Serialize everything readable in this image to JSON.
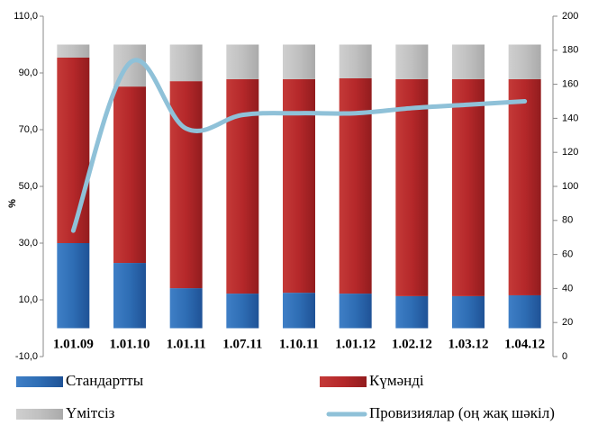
{
  "chart_data": {
    "type": "bar",
    "stacked": true,
    "y_label": "%",
    "categories": [
      "1.01.09",
      "1.01.10",
      "1.01.11",
      "1.07.11",
      "1.10.11",
      "1.01.12",
      "1.02.12",
      "1.03.12",
      "1.04.12"
    ],
    "series": [
      {
        "name": "Стандартты",
        "color": "#2e6db4",
        "values": [
          30,
          23,
          14.1,
          12.2,
          12.5,
          12.2,
          11.3,
          11.3,
          11.6
        ]
      },
      {
        "name": "Күмәнді",
        "color": "#b5282a",
        "values": [
          65.4,
          62.2,
          73,
          75.6,
          75.3,
          75.9,
          76.5,
          76.5,
          76.2
        ]
      },
      {
        "name": "Үмітсіз",
        "color": "#c0c0c0",
        "values": [
          4.6,
          14.8,
          12.9,
          12.2,
          12.2,
          11.9,
          12.2,
          12.2,
          12.2
        ]
      },
      {
        "name": "Провизиялар (оң жақ шәкіл)",
        "color": "#8fc1d8",
        "type": "line",
        "axis": "y2",
        "values": [
          74,
          172.5,
          134,
          142,
          143,
          143,
          146,
          148,
          150
        ]
      }
    ],
    "ylim": [
      -10,
      110
    ],
    "yticks": [
      {
        "value": -10,
        "label": "-10,0"
      },
      {
        "value": 10,
        "label": "10,0"
      },
      {
        "value": 30,
        "label": "30,0"
      },
      {
        "value": 50,
        "label": "50,0"
      },
      {
        "value": 70,
        "label": "70,0"
      },
      {
        "value": 90,
        "label": "90,0"
      },
      {
        "value": 110,
        "label": "110,0"
      }
    ],
    "y2lim": [
      0,
      200
    ],
    "y2ticks": [
      0,
      20,
      40,
      60,
      80,
      100,
      120,
      140,
      160,
      180,
      200
    ]
  }
}
